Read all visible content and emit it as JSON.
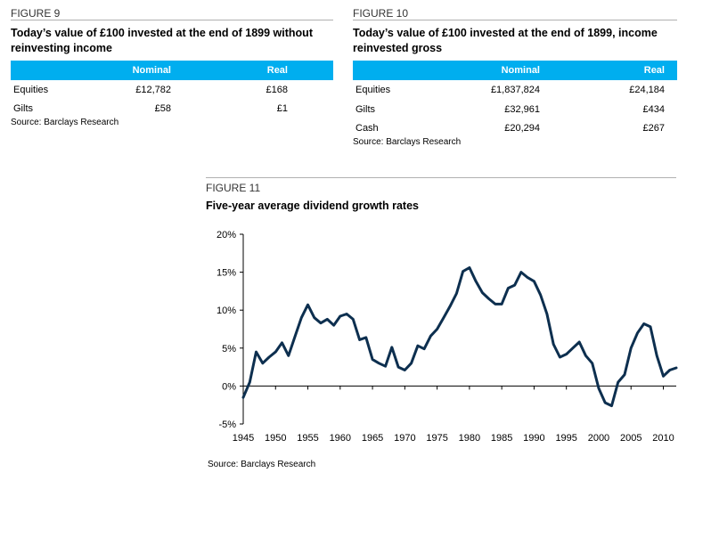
{
  "figure9": {
    "number": "FIGURE 9",
    "title": "Today’s value of £100 invested at the end of 1899 without reinvesting income",
    "headers": [
      "",
      "Nominal",
      "Real"
    ],
    "rows": [
      {
        "label": "Equities",
        "nominal": "£12,782",
        "real": "£168"
      },
      {
        "label": "Gilts",
        "nominal": "£58",
        "real": "£1"
      }
    ],
    "source": "Source: Barclays Research"
  },
  "figure10": {
    "number": "FIGURE 10",
    "title": "Today’s value of £100 invested at the end of 1899, income reinvested gross",
    "headers": [
      "",
      "Nominal",
      "Real"
    ],
    "rows": [
      {
        "label": "Equities",
        "nominal": "£1,837,824",
        "real": "£24,184"
      },
      {
        "label": "Gilts",
        "nominal": "£32,961",
        "real": "£434"
      },
      {
        "label": "Cash",
        "nominal": "£20,294",
        "real": "£267"
      }
    ],
    "source": "Source: Barclays Research"
  },
  "figure11": {
    "number": "FIGURE 11",
    "title": "Five-year average dividend growth rates",
    "source": "Source: Barclays Research"
  },
  "colors": {
    "header_bg": "#00aeef",
    "line": "#0d2f4f"
  },
  "chart_data": {
    "type": "line",
    "title": "Five-year average dividend growth rates",
    "xlabel": "",
    "ylabel": "",
    "xlim": [
      1945,
      2012
    ],
    "ylim": [
      -5,
      20
    ],
    "x_ticks": [
      1945,
      1950,
      1955,
      1960,
      1965,
      1970,
      1975,
      1980,
      1985,
      1990,
      1995,
      2000,
      2005,
      2010
    ],
    "y_ticks": [
      -5,
      0,
      5,
      10,
      15,
      20
    ],
    "y_tick_labels": [
      "-5%",
      "0%",
      "5%",
      "10%",
      "15%",
      "20%"
    ],
    "grid": false,
    "series": [
      {
        "x": [
          1945,
          1946,
          1947,
          1948,
          1949,
          1950,
          1951,
          1952,
          1953,
          1954,
          1955,
          1956,
          1957,
          1958,
          1959,
          1960,
          1961,
          1962,
          1963,
          1964,
          1965,
          1966,
          1967,
          1968,
          1969,
          1970,
          1971,
          1972,
          1973,
          1974,
          1975,
          1976,
          1977,
          1978,
          1979,
          1980,
          1981,
          1982,
          1983,
          1984,
          1985,
          1986,
          1987,
          1988,
          1989,
          1990,
          1991,
          1992,
          1993,
          1994,
          1995,
          1996,
          1997,
          1998,
          1999,
          2000,
          2001,
          2002,
          2003,
          2004,
          2005,
          2006,
          2007,
          2008,
          2009,
          2010,
          2011,
          2012
        ],
        "values": [
          -1.5,
          0.5,
          4.5,
          3.0,
          3.8,
          4.5,
          5.7,
          4.0,
          6.5,
          9.0,
          10.7,
          9.0,
          8.3,
          8.8,
          8.0,
          9.2,
          9.5,
          8.8,
          6.1,
          6.4,
          3.5,
          3.0,
          2.6,
          5.1,
          2.5,
          2.1,
          3.0,
          5.3,
          4.9,
          6.6,
          7.5,
          9.0,
          10.5,
          12.2,
          15.1,
          15.6,
          13.8,
          12.3,
          11.5,
          10.8,
          10.8,
          12.9,
          13.3,
          15.0,
          14.3,
          13.8,
          12.0,
          9.5,
          5.5,
          3.8,
          4.2,
          5.0,
          5.8,
          4.0,
          3.0,
          -0.3,
          -2.2,
          -2.6,
          0.5,
          1.5,
          5.0,
          7.0,
          8.2,
          7.8,
          4.0,
          1.3,
          2.1,
          2.4
        ]
      }
    ]
  }
}
